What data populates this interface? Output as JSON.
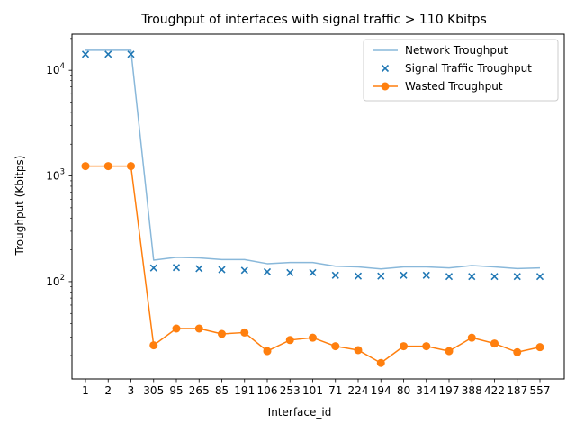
{
  "chart_data": {
    "type": "line",
    "title": "Troughput of interfaces with signal traffic > 110 Kbitps",
    "xlabel": "Interface_id",
    "ylabel": "Troughput (Kbitps)",
    "yscale": "log",
    "ylim": [
      12,
      22000
    ],
    "categories": [
      "1",
      "2",
      "3",
      "305",
      "95",
      "265",
      "85",
      "191",
      "106",
      "253",
      "101",
      "71",
      "224",
      "194",
      "80",
      "314",
      "197",
      "388",
      "422",
      "187",
      "557"
    ],
    "series": [
      {
        "name": "Network Troughput",
        "style": "line",
        "color": "#89b8da",
        "values": [
          15500,
          15500,
          15500,
          160,
          170,
          168,
          162,
          162,
          148,
          152,
          152,
          140,
          138,
          132,
          138,
          138,
          135,
          142,
          138,
          133,
          135
        ]
      },
      {
        "name": "Signal Traffic Troughput",
        "style": "x-markers",
        "color": "#1f77b4",
        "values": [
          14200,
          14200,
          14200,
          135,
          136,
          133,
          130,
          128,
          124,
          122,
          122,
          115,
          113,
          113,
          115,
          115,
          112,
          112,
          112,
          112,
          112
        ]
      },
      {
        "name": "Wasted Troughput",
        "style": "line-circles",
        "color": "#ff7f0e",
        "values": [
          1240,
          1240,
          1240,
          25,
          36,
          36,
          32,
          33,
          22,
          28,
          29.5,
          24.5,
          22.5,
          17,
          24.5,
          24.5,
          22,
          29.5,
          26,
          21.5,
          24
        ]
      }
    ],
    "y_ticks": [
      {
        "value": 100,
        "base": "10",
        "exp": "2"
      },
      {
        "value": 1000,
        "base": "10",
        "exp": "3"
      },
      {
        "value": 10000,
        "base": "10",
        "exp": "4"
      }
    ],
    "legend_location": "upper right"
  }
}
